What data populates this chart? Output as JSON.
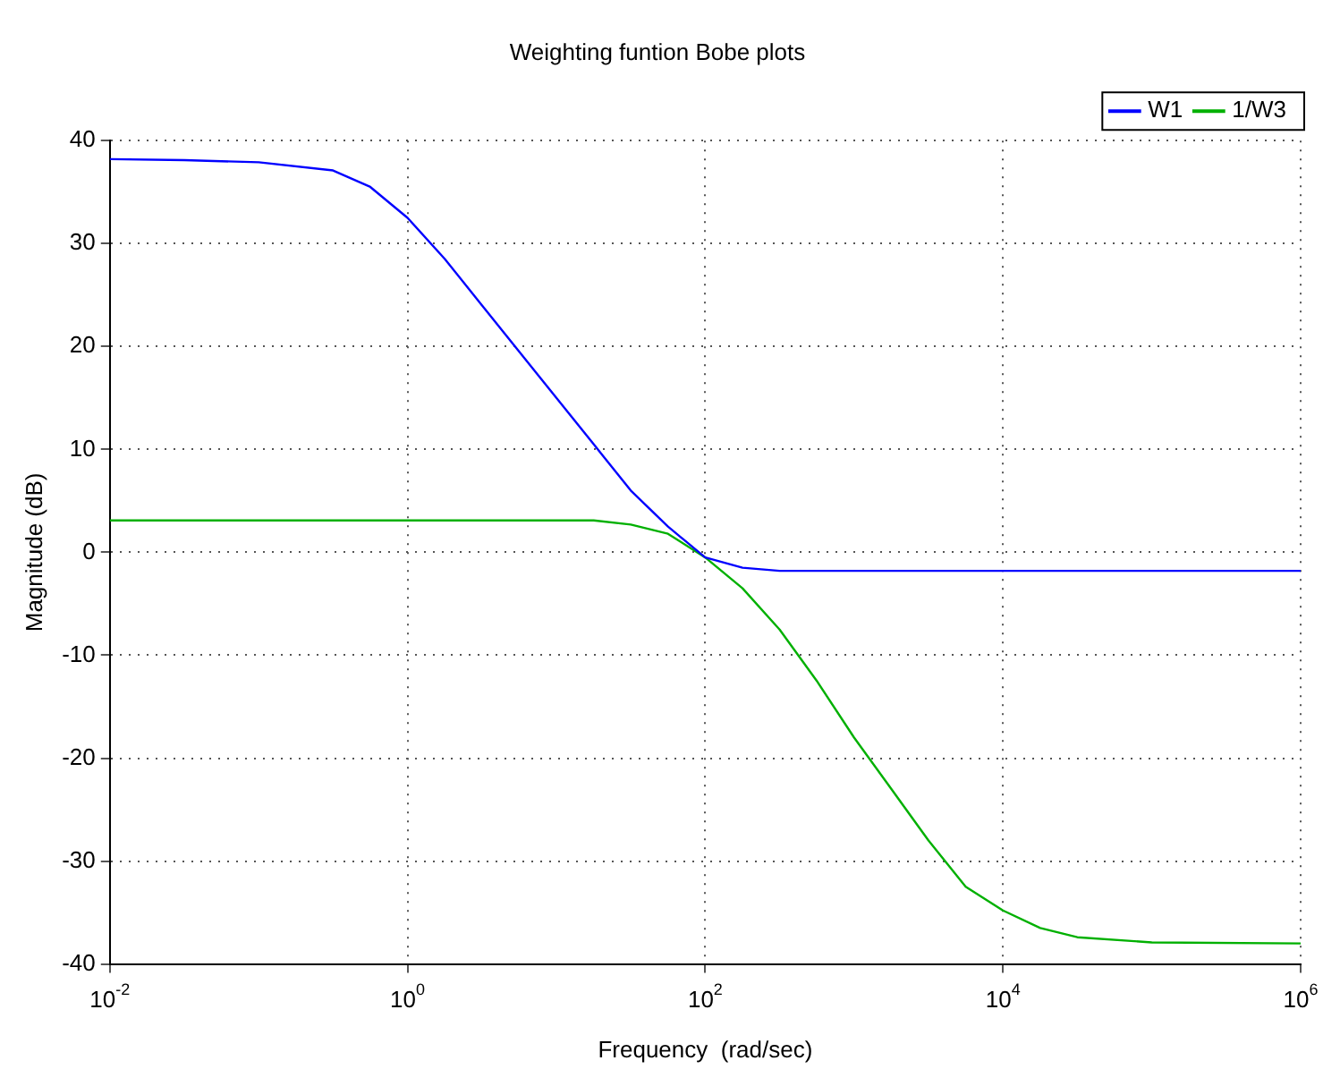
{
  "chart_data": {
    "type": "line",
    "title": "Weighting funtion Bobe plots",
    "xlabel": "Frequency  (rad/sec)",
    "ylabel": "Magnitude (dB)",
    "log": "x",
    "xlim": [
      0.01,
      1000000
    ],
    "ylim": [
      -40,
      40
    ],
    "xticks": [
      {
        "value": 0.01,
        "label": "10$^{-2}$"
      },
      {
        "value": 1,
        "label": "10$^{0}$"
      },
      {
        "value": 100,
        "label": "10$^{2}$"
      },
      {
        "value": 10000,
        "label": "10$^{4}$"
      },
      {
        "value": 1000000,
        "label": "10$^{6}$"
      }
    ],
    "yticks": [
      -40,
      -30,
      -20,
      -10,
      0,
      10,
      20,
      30,
      40
    ],
    "grid": true,
    "legend": "top right",
    "marker": "none",
    "line_style": "solid",
    "series": [
      {
        "name": "W1",
        "color": "#0000ff",
        "x": [
          0.01,
          0.0316,
          0.1,
          0.316,
          0.562,
          1,
          1.78,
          3.16,
          5.62,
          10,
          17.8,
          31.6,
          56.2,
          100,
          178,
          316,
          1000000
        ],
        "values": [
          38.2,
          38.1,
          37.9,
          37.1,
          35.5,
          32.5,
          28.5,
          24,
          19.5,
          15,
          10.5,
          6,
          2.5,
          -0.5,
          -1.5,
          -1.8,
          -1.8
        ]
      },
      {
        "name": "1/W3",
        "color": "#00b000",
        "x": [
          0.01,
          1,
          17.8,
          31.6,
          56.2,
          100,
          178,
          316,
          562,
          1000,
          1780,
          3160,
          5620,
          10000,
          17800,
          31600,
          100000,
          1000000
        ],
        "values": [
          3.1,
          3.1,
          3.1,
          2.7,
          1.8,
          -0.5,
          -3.5,
          -7.5,
          -12.5,
          -18,
          -23,
          -28,
          -32.5,
          -34.8,
          -36.5,
          -37.4,
          -37.9,
          -38
        ]
      }
    ]
  }
}
